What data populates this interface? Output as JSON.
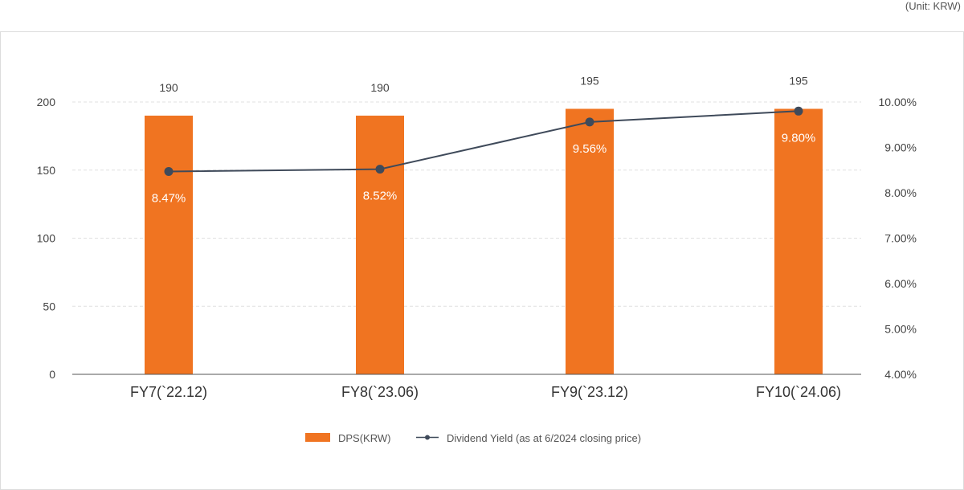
{
  "unit_note": "(Unit: KRW)",
  "colors": {
    "bar": "#f07421",
    "line": "#3f4a5a",
    "grid": "#e0e0e0",
    "axis": "#555555"
  },
  "chart_data": {
    "type": "bar",
    "categories": [
      "FY7(`22.12)",
      "FY8(`23.06)",
      "FY9(`23.12)",
      "FY10(`24.06)"
    ],
    "series": [
      {
        "name": "DPS(KRW)",
        "type": "bar",
        "axis": "left",
        "values": [
          190,
          190,
          195,
          195
        ],
        "labels": [
          "190",
          "190",
          "195",
          "195"
        ]
      },
      {
        "name": "Dividend Yield (as at 6/2024 closing price)",
        "type": "line",
        "axis": "right",
        "values": [
          8.47,
          8.52,
          9.56,
          9.8
        ],
        "labels": [
          "8.47%",
          "8.52%",
          "9.56%",
          "9.80%"
        ]
      }
    ],
    "y_left": {
      "ylim": [
        0,
        200
      ],
      "ticks": [
        0,
        50,
        100,
        150,
        200
      ],
      "tick_labels": [
        "0",
        "50",
        "100",
        "150",
        "200"
      ]
    },
    "y_right": {
      "ylim": [
        4,
        10
      ],
      "ticks": [
        4,
        5,
        6,
        7,
        8,
        9,
        10
      ],
      "tick_labels": [
        "4.00%",
        "5.00%",
        "6.00%",
        "7.00%",
        "8.00%",
        "9.00%",
        "10.00%"
      ]
    },
    "grid": true,
    "legend": "bottom-center"
  }
}
